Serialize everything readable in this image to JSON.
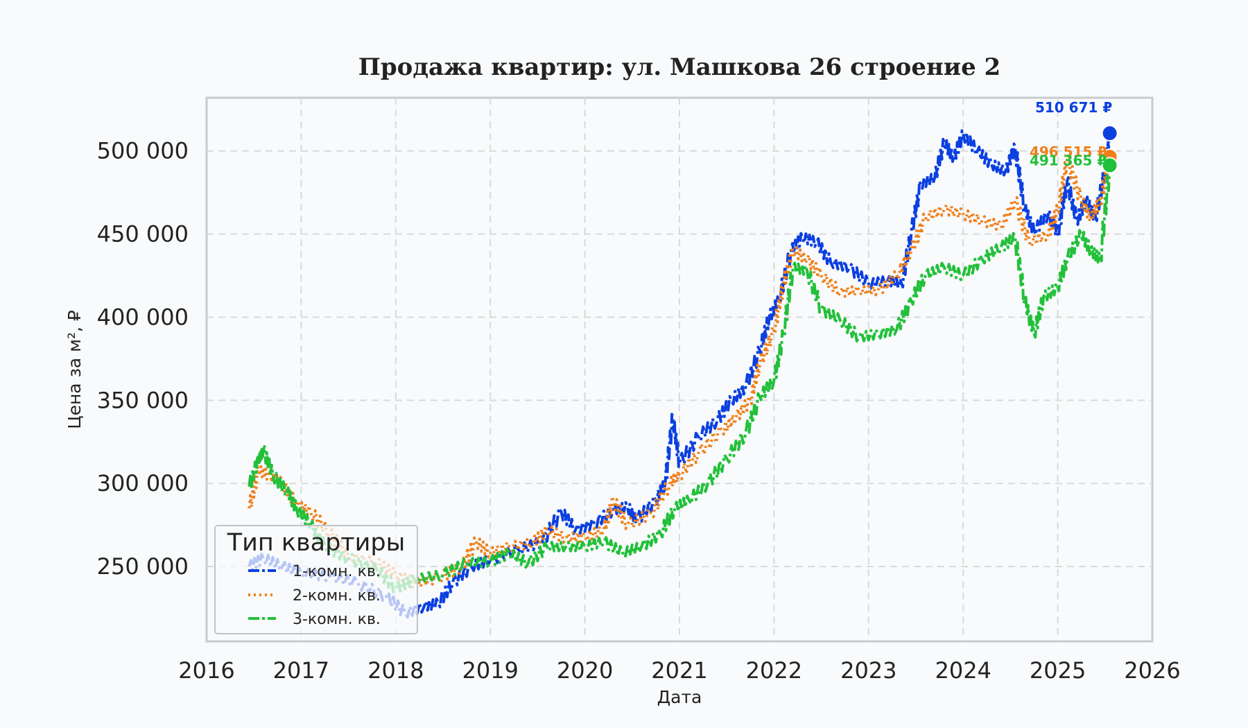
{
  "chart_data": {
    "type": "line",
    "title": "Продажа квартир: ул. Машкова 26 строение 2",
    "xlabel": "Дата",
    "ylabel": "Цена за м², ₽",
    "xlim": [
      2016,
      2026
    ],
    "ylim": [
      205000,
      532000
    ],
    "x_ticks": [
      "2016",
      "2017",
      "2018",
      "2019",
      "2020",
      "2021",
      "2022",
      "2023",
      "2024",
      "2025",
      "2026"
    ],
    "y_ticks": [
      "250 000",
      "300 000",
      "350 000",
      "400 000",
      "450 000",
      "500 000"
    ],
    "y_tick_values": [
      250000,
      300000,
      350000,
      400000,
      450000,
      500000
    ],
    "grid": true,
    "legend": {
      "title": "Тип квартиры",
      "placement": "bottom-left",
      "entries": [
        "1-комн. кв.",
        "2-комн. кв.",
        "3-комн. кв."
      ]
    },
    "series": [
      {
        "name": "1-комн. кв.",
        "color": "#0b3fe0",
        "dash": "dashdot",
        "end_label": "510 671 ₽",
        "points": [
          [
            2016.45,
            250000
          ],
          [
            2016.6,
            255000
          ],
          [
            2016.8,
            250000
          ],
          [
            2017.0,
            246000
          ],
          [
            2017.3,
            244000
          ],
          [
            2017.6,
            240000
          ],
          [
            2017.9,
            232000
          ],
          [
            2018.1,
            222000
          ],
          [
            2018.3,
            226000
          ],
          [
            2018.45,
            228000
          ],
          [
            2018.6,
            240000
          ],
          [
            2018.8,
            250000
          ],
          [
            2019.0,
            254000
          ],
          [
            2019.3,
            260000
          ],
          [
            2019.55,
            265000
          ],
          [
            2019.75,
            283000
          ],
          [
            2019.9,
            272000
          ],
          [
            2020.1,
            276000
          ],
          [
            2020.3,
            284000
          ],
          [
            2020.45,
            286000
          ],
          [
            2020.55,
            278000
          ],
          [
            2020.75,
            290000
          ],
          [
            2020.85,
            300000
          ],
          [
            2020.93,
            340000
          ],
          [
            2021.0,
            312000
          ],
          [
            2021.2,
            328000
          ],
          [
            2021.4,
            338000
          ],
          [
            2021.55,
            350000
          ],
          [
            2021.7,
            358000
          ],
          [
            2021.85,
            380000
          ],
          [
            2021.95,
            400000
          ],
          [
            2022.05,
            410000
          ],
          [
            2022.18,
            440000
          ],
          [
            2022.3,
            448000
          ],
          [
            2022.45,
            445000
          ],
          [
            2022.6,
            433000
          ],
          [
            2022.8,
            430000
          ],
          [
            2023.0,
            420000
          ],
          [
            2023.2,
            422000
          ],
          [
            2023.35,
            420000
          ],
          [
            2023.45,
            450000
          ],
          [
            2023.55,
            480000
          ],
          [
            2023.7,
            484000
          ],
          [
            2023.8,
            505000
          ],
          [
            2023.9,
            496000
          ],
          [
            2024.0,
            510000
          ],
          [
            2024.15,
            500000
          ],
          [
            2024.3,
            492000
          ],
          [
            2024.45,
            488000
          ],
          [
            2024.55,
            502000
          ],
          [
            2024.65,
            465000
          ],
          [
            2024.75,
            452000
          ],
          [
            2024.9,
            462000
          ],
          [
            2025.0,
            450000
          ],
          [
            2025.1,
            482000
          ],
          [
            2025.2,
            458000
          ],
          [
            2025.3,
            470000
          ],
          [
            2025.4,
            460000
          ],
          [
            2025.5,
            488000
          ],
          [
            2025.55,
            510671
          ]
        ]
      },
      {
        "name": "2-комн. кв.",
        "color": "#f07f1a",
        "dash": "dotted",
        "end_label": "496 515 ₽",
        "points": [
          [
            2016.45,
            285000
          ],
          [
            2016.55,
            308000
          ],
          [
            2016.65,
            305000
          ],
          [
            2016.8,
            300000
          ],
          [
            2016.95,
            287000
          ],
          [
            2017.1,
            283000
          ],
          [
            2017.3,
            270000
          ],
          [
            2017.5,
            256000
          ],
          [
            2017.8,
            252000
          ],
          [
            2018.0,
            245000
          ],
          [
            2018.2,
            240000
          ],
          [
            2018.45,
            243000
          ],
          [
            2018.7,
            250000
          ],
          [
            2018.85,
            265000
          ],
          [
            2019.0,
            258000
          ],
          [
            2019.2,
            262000
          ],
          [
            2019.45,
            264000
          ],
          [
            2019.6,
            272000
          ],
          [
            2019.8,
            267000
          ],
          [
            2020.0,
            268000
          ],
          [
            2020.2,
            272000
          ],
          [
            2020.3,
            290000
          ],
          [
            2020.45,
            275000
          ],
          [
            2020.7,
            282000
          ],
          [
            2020.9,
            300000
          ],
          [
            2021.0,
            305000
          ],
          [
            2021.2,
            318000
          ],
          [
            2021.45,
            332000
          ],
          [
            2021.6,
            340000
          ],
          [
            2021.75,
            350000
          ],
          [
            2021.85,
            372000
          ],
          [
            2022.0,
            392000
          ],
          [
            2022.1,
            420000
          ],
          [
            2022.2,
            440000
          ],
          [
            2022.35,
            435000
          ],
          [
            2022.5,
            425000
          ],
          [
            2022.7,
            415000
          ],
          [
            2022.9,
            416000
          ],
          [
            2023.1,
            416000
          ],
          [
            2023.3,
            425000
          ],
          [
            2023.45,
            440000
          ],
          [
            2023.6,
            460000
          ],
          [
            2023.8,
            465000
          ],
          [
            2024.0,
            462000
          ],
          [
            2024.2,
            458000
          ],
          [
            2024.4,
            455000
          ],
          [
            2024.55,
            470000
          ],
          [
            2024.7,
            445000
          ],
          [
            2024.9,
            450000
          ],
          [
            2025.0,
            465000
          ],
          [
            2025.1,
            495000
          ],
          [
            2025.25,
            470000
          ],
          [
            2025.35,
            460000
          ],
          [
            2025.45,
            470000
          ],
          [
            2025.55,
            496515
          ]
        ]
      },
      {
        "name": "3-комн. кв.",
        "color": "#22c03a",
        "dash": "dashdot",
        "end_label": "491 365 ₽",
        "points": [
          [
            2016.45,
            298000
          ],
          [
            2016.55,
            315000
          ],
          [
            2016.6,
            320000
          ],
          [
            2016.7,
            305000
          ],
          [
            2016.85,
            295000
          ],
          [
            2016.95,
            285000
          ],
          [
            2017.1,
            275000
          ],
          [
            2017.25,
            262000
          ],
          [
            2017.5,
            255000
          ],
          [
            2017.8,
            248000
          ],
          [
            2018.0,
            237000
          ],
          [
            2018.2,
            242000
          ],
          [
            2018.5,
            245000
          ],
          [
            2018.75,
            252000
          ],
          [
            2019.0,
            253000
          ],
          [
            2019.2,
            258000
          ],
          [
            2019.4,
            252000
          ],
          [
            2019.6,
            262000
          ],
          [
            2019.8,
            262000
          ],
          [
            2020.0,
            262000
          ],
          [
            2020.2,
            265000
          ],
          [
            2020.4,
            258000
          ],
          [
            2020.6,
            262000
          ],
          [
            2020.8,
            270000
          ],
          [
            2020.95,
            285000
          ],
          [
            2021.1,
            290000
          ],
          [
            2021.3,
            300000
          ],
          [
            2021.5,
            315000
          ],
          [
            2021.7,
            330000
          ],
          [
            2021.85,
            352000
          ],
          [
            2022.0,
            362000
          ],
          [
            2022.1,
            390000
          ],
          [
            2022.2,
            430000
          ],
          [
            2022.35,
            428000
          ],
          [
            2022.5,
            405000
          ],
          [
            2022.7,
            398000
          ],
          [
            2022.9,
            388000
          ],
          [
            2023.1,
            390000
          ],
          [
            2023.3,
            393000
          ],
          [
            2023.45,
            410000
          ],
          [
            2023.6,
            425000
          ],
          [
            2023.8,
            430000
          ],
          [
            2024.0,
            425000
          ],
          [
            2024.2,
            435000
          ],
          [
            2024.4,
            442000
          ],
          [
            2024.55,
            448000
          ],
          [
            2024.65,
            410000
          ],
          [
            2024.75,
            390000
          ],
          [
            2024.85,
            412000
          ],
          [
            2025.0,
            418000
          ],
          [
            2025.1,
            435000
          ],
          [
            2025.25,
            450000
          ],
          [
            2025.35,
            440000
          ],
          [
            2025.45,
            435000
          ],
          [
            2025.55,
            491365
          ]
        ]
      }
    ]
  }
}
